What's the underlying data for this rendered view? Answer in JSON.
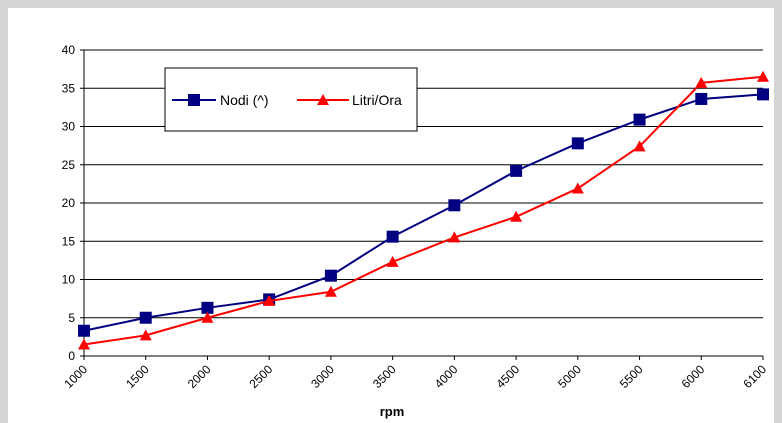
{
  "chart_data": {
    "type": "line",
    "categories": [
      "1000",
      "1500",
      "2000",
      "2500",
      "3000",
      "3500",
      "4000",
      "4500",
      "5000",
      "5500",
      "6000",
      "6100"
    ],
    "series": [
      {
        "name": "Nodi (^)",
        "color": "#000080",
        "marker": "square",
        "values": [
          3.3,
          5.0,
          6.3,
          7.4,
          10.5,
          15.6,
          19.7,
          24.2,
          27.8,
          30.9,
          33.6,
          34.2
        ]
      },
      {
        "name": "Litri/Ora",
        "color": "#ff0000",
        "marker": "triangle",
        "values": [
          1.5,
          2.7,
          5.0,
          7.2,
          8.4,
          12.3,
          15.5,
          18.2,
          21.9,
          27.4,
          35.7,
          36.5
        ]
      }
    ],
    "xlabel": "rpm",
    "ylabel": "",
    "ylim": [
      0,
      40
    ],
    "yticks": [
      "0",
      "5",
      "10",
      "15",
      "20",
      "25",
      "30",
      "35",
      "40"
    ],
    "grid": "horizontal",
    "legend_position": "top-left"
  }
}
